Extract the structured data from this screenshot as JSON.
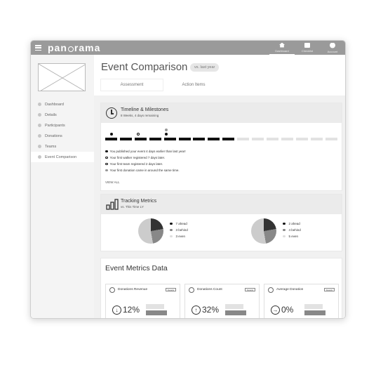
{
  "app": {
    "logo": "panorama"
  },
  "topnav": [
    {
      "label": "Dashboard",
      "icon": "home-icon"
    },
    {
      "label": "Checklist",
      "icon": "document-icon"
    },
    {
      "label": "Account",
      "icon": "user-icon"
    }
  ],
  "sidebar": {
    "items": [
      {
        "label": "Dashboard"
      },
      {
        "label": "Details"
      },
      {
        "label": "Participants"
      },
      {
        "label": "Donations"
      },
      {
        "label": "Teams"
      },
      {
        "label": "Event Comparison"
      }
    ]
  },
  "header": {
    "title": "Event Comparison",
    "badge": "vs. last year"
  },
  "tabs": [
    {
      "label": "Assessment"
    },
    {
      "label": "Action Items"
    }
  ],
  "timeline": {
    "title": "Timeline & Milestones",
    "subtitle": "8 Weeks, 4 days remaining",
    "filled_segments": 9,
    "total_segments": 16,
    "milestones": [
      {
        "text": "You published your event 4 days earlier than last year!",
        "color": "#111111"
      },
      {
        "text": "Your first walker registered 7 days later.",
        "color": "#ffffff"
      },
      {
        "text": "Your first team registered 2 days later.",
        "color": "#ffffff"
      },
      {
        "text": "Your first donation came in around the same time.",
        "color": "#999999"
      }
    ],
    "view_all": "VIEW ALL"
  },
  "tracking": {
    "title": "Tracking Metrics",
    "subtitle": "vs. This Time LY",
    "charts": [
      {
        "legend": [
          "7 ahead",
          "3 behind",
          "3 even"
        ]
      },
      {
        "legend": [
          "2 ahead",
          "4 behind",
          "5 even"
        ]
      }
    ]
  },
  "metrics": {
    "title": "Event Metrics Data",
    "details_label": "Details",
    "cards": [
      {
        "label": "Donations Revenue",
        "value": "12%",
        "arrow": "↓"
      },
      {
        "label": "Donations Count",
        "value": "32%",
        "arrow": "↑"
      },
      {
        "label": "Average Donation",
        "value": "0%",
        "arrow": "→"
      }
    ]
  }
}
